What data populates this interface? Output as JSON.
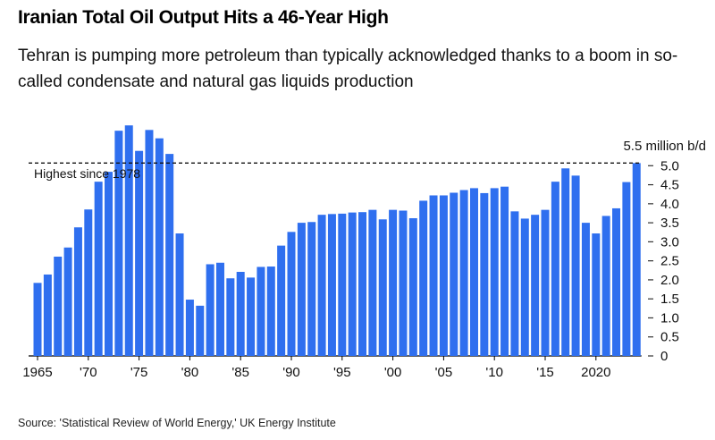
{
  "title": "Iranian Total Oil Output Hits a 46-Year High",
  "subtitle": "Tehran is pumping more petroleum than typically acknowledged thanks to a boom in so-called condensate and natural gas liquids production",
  "source": "Source: 'Statistical Review of World Energy,' UK Energy Institute",
  "chart_data": {
    "type": "bar",
    "title": "",
    "ylabel": "5.5 million b/d",
    "ylim": [
      0,
      6.3
    ],
    "grid": false,
    "bar_color": "#2f6fef",
    "x": [
      1965,
      1966,
      1967,
      1968,
      1969,
      1970,
      1971,
      1972,
      1973,
      1974,
      1975,
      1976,
      1977,
      1978,
      1979,
      1980,
      1981,
      1982,
      1983,
      1984,
      1985,
      1986,
      1987,
      1988,
      1989,
      1990,
      1991,
      1992,
      1993,
      1994,
      1995,
      1996,
      1997,
      1998,
      1999,
      2000,
      2001,
      2002,
      2003,
      2004,
      2005,
      2006,
      2007,
      2008,
      2009,
      2010,
      2011,
      2012,
      2013,
      2014,
      2015,
      2016,
      2017,
      2018,
      2019,
      2020,
      2021,
      2022,
      2023,
      2024
    ],
    "values": [
      1.92,
      2.14,
      2.61,
      2.85,
      3.38,
      3.85,
      4.58,
      4.84,
      5.92,
      6.06,
      5.39,
      5.94,
      5.72,
      5.31,
      3.22,
      1.48,
      1.32,
      2.41,
      2.45,
      2.04,
      2.21,
      2.06,
      2.34,
      2.35,
      2.9,
      3.26,
      3.5,
      3.52,
      3.71,
      3.73,
      3.74,
      3.77,
      3.78,
      3.84,
      3.59,
      3.84,
      3.82,
      3.62,
      4.08,
      4.22,
      4.22,
      4.29,
      4.36,
      4.41,
      4.28,
      4.41,
      4.45,
      3.8,
      3.61,
      3.71,
      3.84,
      4.58,
      4.93,
      4.74,
      3.5,
      3.22,
      3.68,
      3.88,
      4.57,
      5.07
    ],
    "x_ticks": [
      {
        "year": 1965,
        "label": "1965"
      },
      {
        "year": 1970,
        "label": "'70"
      },
      {
        "year": 1975,
        "label": "'75"
      },
      {
        "year": 1980,
        "label": "'80"
      },
      {
        "year": 1985,
        "label": "'85"
      },
      {
        "year": 1990,
        "label": "'90"
      },
      {
        "year": 1995,
        "label": "'95"
      },
      {
        "year": 2000,
        "label": "'00"
      },
      {
        "year": 2005,
        "label": "'05"
      },
      {
        "year": 2010,
        "label": "'10"
      },
      {
        "year": 2015,
        "label": "'15"
      },
      {
        "year": 2020,
        "label": "2020"
      }
    ],
    "y_ticks": [
      {
        "value": 0,
        "label": "0"
      },
      {
        "value": 0.5,
        "label": "0.5"
      },
      {
        "value": 1,
        "label": "1.0"
      },
      {
        "value": 1.5,
        "label": "1.5"
      },
      {
        "value": 2,
        "label": "2.0"
      },
      {
        "value": 2.5,
        "label": "2.5"
      },
      {
        "value": 3,
        "label": "3.0"
      },
      {
        "value": 3.5,
        "label": "3.5"
      },
      {
        "value": 4,
        "label": "4.0"
      },
      {
        "value": 4.5,
        "label": "4.5"
      },
      {
        "value": 5,
        "label": "5.0"
      }
    ],
    "reference_line": {
      "value": 5.07,
      "label": "Highest since 1978",
      "style": "dashed"
    }
  }
}
